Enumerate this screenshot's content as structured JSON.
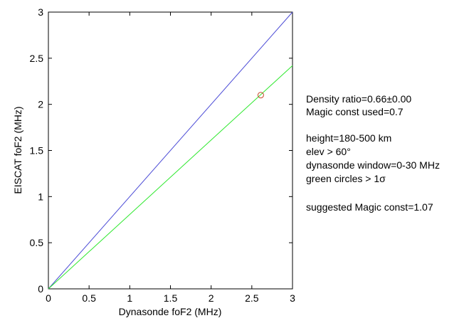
{
  "chart_data": {
    "type": "scatter",
    "xlabel": "Dynasonde foF2 (MHz)",
    "ylabel": "EISCAT foF2 (MHz)",
    "xlim": [
      0,
      3
    ],
    "ylim": [
      0,
      3
    ],
    "x_ticks": [
      "0",
      "0.5",
      "1",
      "1.5",
      "2",
      "2.5",
      "3"
    ],
    "y_ticks": [
      "0",
      "0.5",
      "1",
      "1.5",
      "2",
      "2.5",
      "3"
    ],
    "grid": false,
    "lines": [
      {
        "color": "#4b4bd6",
        "x": [
          0,
          3
        ],
        "y": [
          0,
          3
        ]
      },
      {
        "color": "#2ee82e",
        "x": [
          0,
          3
        ],
        "y": [
          0,
          2.42
        ]
      }
    ],
    "points": [
      {
        "x": 2.61,
        "y": 2.1,
        "color": "#c8462a",
        "marker": "open-circle"
      }
    ]
  },
  "annotations": [
    "Density ratio=0.66±0.00",
    "Magic const used=0.7",
    "height=180-500 km",
    "elev > 60°",
    "dynasonde window=0-30 MHz",
    "green circles > 1σ",
    "suggested Magic const=1.07"
  ]
}
